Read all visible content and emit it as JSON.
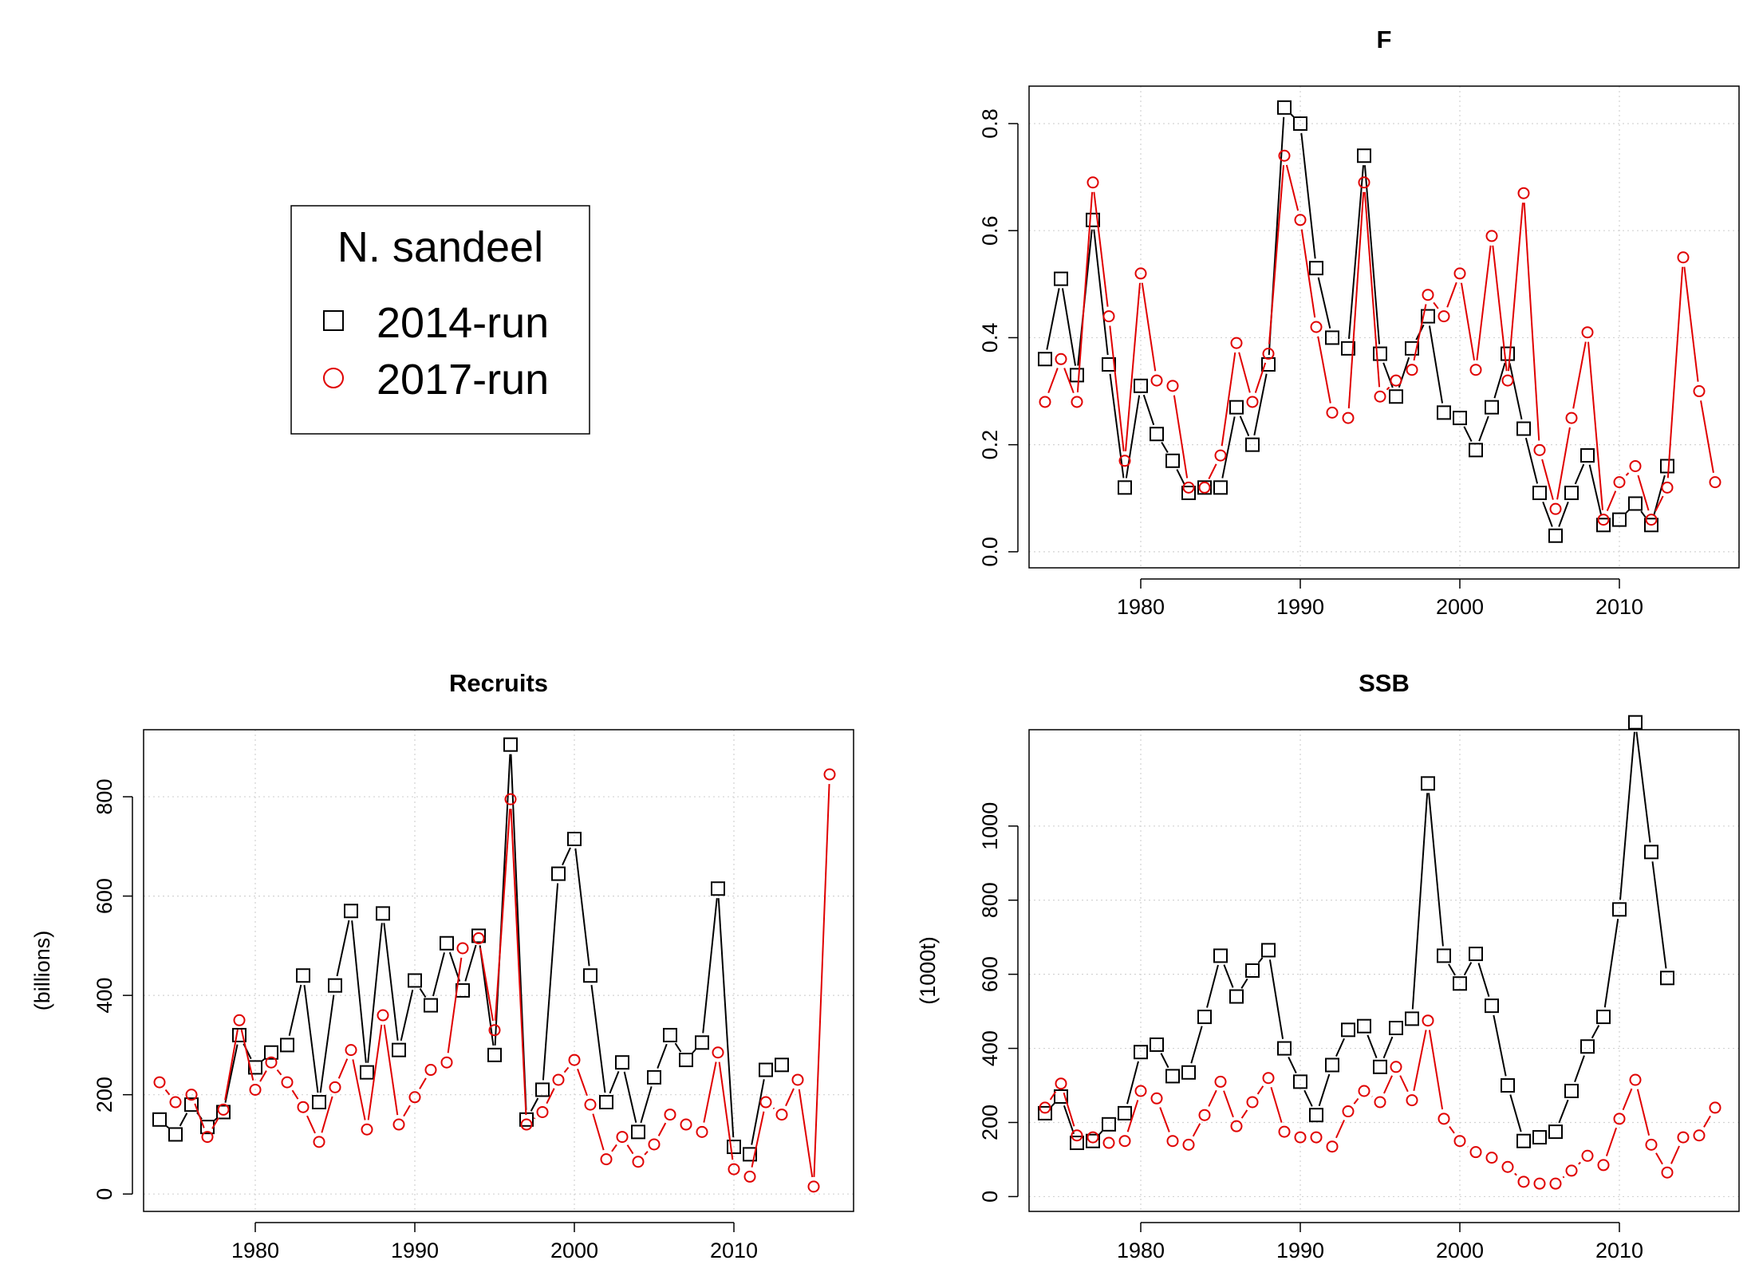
{
  "legend": {
    "title": "N. sandeel",
    "entries": [
      {
        "label": "2014-run",
        "color": "#000000",
        "symbol": "square"
      },
      {
        "label": "2017-run",
        "color": "#e00000",
        "symbol": "circle"
      }
    ]
  },
  "chart_data": [
    {
      "type": "line",
      "title": "F",
      "xlabel": "",
      "ylabel": "",
      "xlim": [
        1973,
        2017.5
      ],
      "ylim": [
        -0.03,
        0.87
      ],
      "xticks": [
        1980,
        1990,
        2000,
        2010
      ],
      "yticks": [
        0.0,
        0.2,
        0.4,
        0.6,
        0.8
      ],
      "grid": true,
      "series": [
        {
          "name": "2014-run",
          "x": [
            1974,
            1975,
            1976,
            1977,
            1978,
            1979,
            1980,
            1981,
            1982,
            1983,
            1984,
            1985,
            1986,
            1987,
            1988,
            1989,
            1990,
            1991,
            1992,
            1993,
            1994,
            1995,
            1996,
            1997,
            1998,
            1999,
            2000,
            2001,
            2002,
            2003,
            2004,
            2005,
            2006,
            2007,
            2008,
            2009,
            2010,
            2011,
            2012,
            2013
          ],
          "y": [
            0.36,
            0.51,
            0.33,
            0.62,
            0.35,
            0.12,
            0.31,
            0.22,
            0.17,
            0.11,
            0.12,
            0.12,
            0.27,
            0.2,
            0.35,
            0.83,
            0.8,
            0.53,
            0.4,
            0.38,
            0.74,
            0.37,
            0.29,
            0.38,
            0.44,
            0.26,
            0.25,
            0.19,
            0.27,
            0.37,
            0.23,
            0.11,
            0.03,
            0.11,
            0.18,
            0.05,
            0.06,
            0.09,
            0.05,
            0.16
          ]
        },
        {
          "name": "2017-run",
          "x": [
            1974,
            1975,
            1976,
            1977,
            1978,
            1979,
            1980,
            1981,
            1982,
            1983,
            1984,
            1985,
            1986,
            1987,
            1988,
            1989,
            1990,
            1991,
            1992,
            1993,
            1994,
            1995,
            1996,
            1997,
            1998,
            1999,
            2000,
            2001,
            2002,
            2003,
            2004,
            2005,
            2006,
            2007,
            2008,
            2009,
            2010,
            2011,
            2012,
            2013,
            2014,
            2015,
            2016
          ],
          "y": [
            0.28,
            0.36,
            0.28,
            0.69,
            0.44,
            0.17,
            0.52,
            0.32,
            0.31,
            0.12,
            0.12,
            0.18,
            0.39,
            0.28,
            0.37,
            0.74,
            0.62,
            0.42,
            0.26,
            0.25,
            0.69,
            0.29,
            0.32,
            0.34,
            0.48,
            0.44,
            0.52,
            0.34,
            0.59,
            0.32,
            0.67,
            0.19,
            0.08,
            0.25,
            0.41,
            0.06,
            0.13,
            0.16,
            0.06,
            0.12,
            0.55,
            0.3,
            0.13
          ]
        }
      ]
    },
    {
      "type": "line",
      "title": "Recruits",
      "xlabel": "",
      "ylabel": "(billions)",
      "xlim": [
        1973,
        2017.5
      ],
      "ylim": [
        -35,
        935
      ],
      "xticks": [
        1980,
        1990,
        2000,
        2010
      ],
      "yticks": [
        0,
        200,
        400,
        600,
        800
      ],
      "grid": true,
      "series": [
        {
          "name": "2014-run",
          "x": [
            1974,
            1975,
            1976,
            1977,
            1978,
            1979,
            1980,
            1981,
            1982,
            1983,
            1984,
            1985,
            1986,
            1987,
            1988,
            1989,
            1990,
            1991,
            1992,
            1993,
            1994,
            1995,
            1996,
            1997,
            1998,
            1999,
            2000,
            2001,
            2002,
            2003,
            2004,
            2005,
            2006,
            2007,
            2008,
            2009,
            2010,
            2011,
            2012,
            2013
          ],
          "y": [
            150,
            120,
            180,
            135,
            165,
            320,
            255,
            285,
            300,
            440,
            185,
            420,
            570,
            245,
            565,
            290,
            430,
            380,
            505,
            410,
            520,
            280,
            905,
            150,
            210,
            645,
            715,
            440,
            185,
            265,
            125,
            235,
            320,
            270,
            305,
            615,
            95,
            80,
            250,
            260
          ]
        },
        {
          "name": "2017-run",
          "x": [
            1974,
            1975,
            1976,
            1977,
            1978,
            1979,
            1980,
            1981,
            1982,
            1983,
            1984,
            1985,
            1986,
            1987,
            1988,
            1989,
            1990,
            1991,
            1992,
            1993,
            1994,
            1995,
            1996,
            1997,
            1998,
            1999,
            2000,
            2001,
            2002,
            2003,
            2004,
            2005,
            2006,
            2007,
            2008,
            2009,
            2010,
            2011,
            2012,
            2013,
            2014,
            2015,
            2016
          ],
          "y": [
            225,
            185,
            200,
            115,
            170,
            350,
            210,
            265,
            225,
            175,
            105,
            215,
            290,
            130,
            360,
            140,
            195,
            250,
            265,
            495,
            515,
            330,
            795,
            140,
            165,
            230,
            270,
            180,
            70,
            115,
            65,
            100,
            160,
            140,
            125,
            285,
            50,
            35,
            185,
            160,
            230,
            15,
            845
          ]
        }
      ]
    },
    {
      "type": "line",
      "title": "SSB",
      "xlabel": "",
      "ylabel": "(1000t)",
      "xlim": [
        1973,
        2017.5
      ],
      "ylim": [
        -40,
        1260
      ],
      "xticks": [
        1980,
        1990,
        2000,
        2010
      ],
      "yticks": [
        0,
        200,
        400,
        600,
        800,
        1000
      ],
      "grid": true,
      "series": [
        {
          "name": "2014-run",
          "x": [
            1974,
            1975,
            1976,
            1977,
            1978,
            1979,
            1980,
            1981,
            1982,
            1983,
            1984,
            1985,
            1986,
            1987,
            1988,
            1989,
            1990,
            1991,
            1992,
            1993,
            1994,
            1995,
            1996,
            1997,
            1998,
            1999,
            2000,
            2001,
            2002,
            2003,
            2004,
            2005,
            2006,
            2007,
            2008,
            2009,
            2010,
            2011,
            2012,
            2013
          ],
          "y": [
            225,
            270,
            145,
            150,
            195,
            225,
            390,
            410,
            325,
            335,
            485,
            650,
            540,
            610,
            665,
            400,
            310,
            220,
            355,
            450,
            460,
            350,
            455,
            480,
            1115,
            650,
            575,
            655,
            515,
            300,
            150,
            160,
            175,
            285,
            405,
            485,
            775,
            1280,
            930,
            590
          ]
        },
        {
          "name": "2017-run",
          "x": [
            1974,
            1975,
            1976,
            1977,
            1978,
            1979,
            1980,
            1981,
            1982,
            1983,
            1984,
            1985,
            1986,
            1987,
            1988,
            1989,
            1990,
            1991,
            1992,
            1993,
            1994,
            1995,
            1996,
            1997,
            1998,
            1999,
            2000,
            2001,
            2002,
            2003,
            2004,
            2005,
            2006,
            2007,
            2008,
            2009,
            2010,
            2011,
            2012,
            2013,
            2014,
            2015,
            2016
          ],
          "y": [
            240,
            305,
            165,
            160,
            145,
            150,
            285,
            265,
            150,
            140,
            220,
            310,
            190,
            255,
            320,
            175,
            160,
            160,
            135,
            230,
            285,
            255,
            350,
            260,
            475,
            210,
            150,
            120,
            105,
            80,
            40,
            35,
            35,
            70,
            110,
            85,
            210,
            315,
            140,
            65,
            160,
            165,
            240
          ]
        }
      ]
    }
  ]
}
